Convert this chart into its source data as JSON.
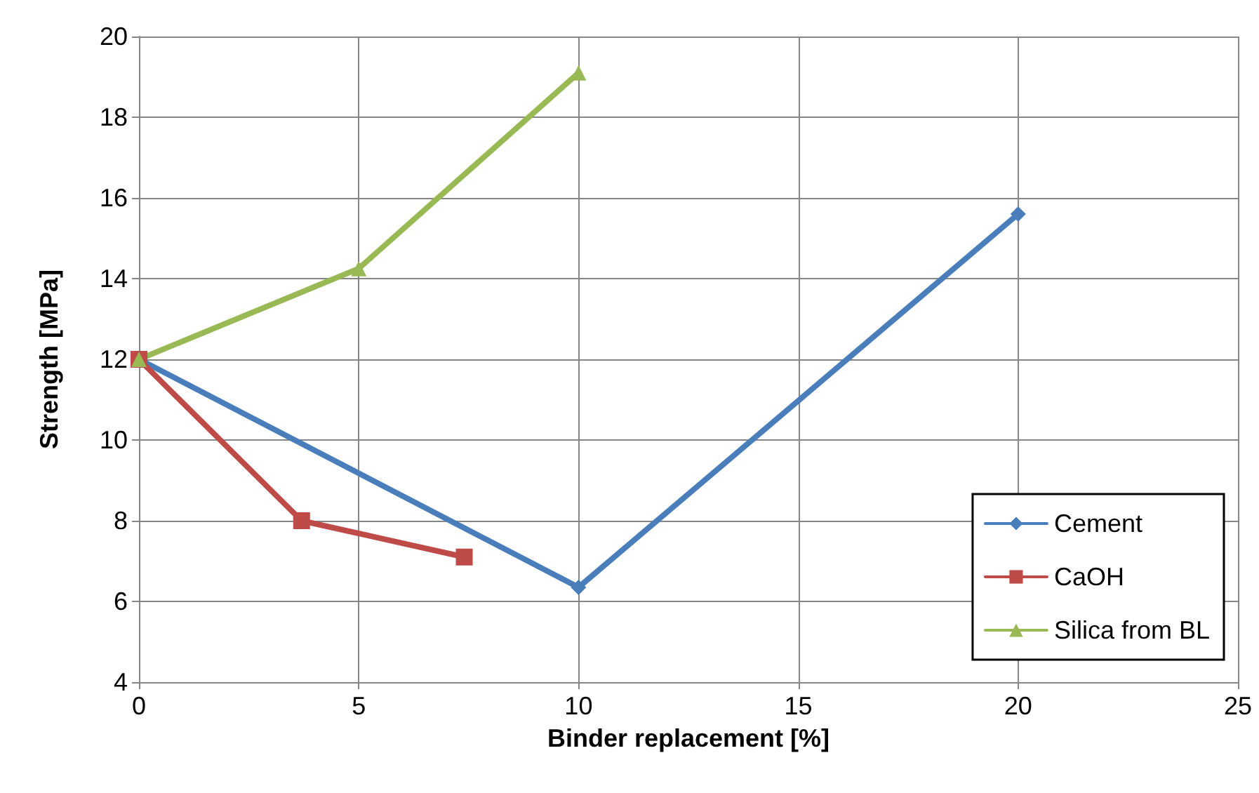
{
  "chart_data": {
    "type": "line",
    "xlabel": "Binder replacement [%]",
    "ylabel": "Strength [MPa]",
    "xlim": [
      0,
      25
    ],
    "xticks": [
      0,
      5,
      10,
      15,
      20,
      25
    ],
    "ylim": [
      4,
      20
    ],
    "yticks": [
      4,
      6,
      8,
      10,
      12,
      14,
      16,
      18,
      20
    ],
    "grid": true,
    "legend": "bottom right",
    "line_style": "solid",
    "series": [
      {
        "name": "Cement",
        "color": "#4a7ebb",
        "marker": "diamond",
        "x": [
          0,
          10,
          20
        ],
        "values": [
          12,
          6.35,
          15.6
        ]
      },
      {
        "name": "CaOH",
        "color": "#be4b48",
        "marker": "square",
        "x": [
          0,
          3.7,
          7.4
        ],
        "values": [
          12,
          8,
          7.1
        ]
      },
      {
        "name": "Silica from BL",
        "color": "#98b954",
        "marker": "triangle",
        "x": [
          0,
          5,
          10
        ],
        "values": [
          12,
          14.25,
          19.1
        ]
      }
    ]
  }
}
